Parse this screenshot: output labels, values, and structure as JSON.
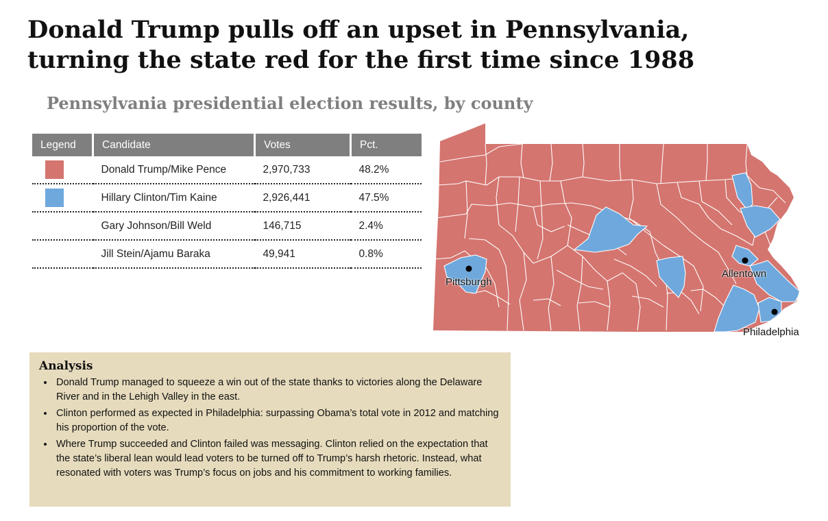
{
  "headline": {
    "line1": "Donald Trump pulls off an upset in Pennsylvania,",
    "line2": "turning the state red for the first time since 1988"
  },
  "subtitle": "Pennsylvania presidential election results, by county",
  "table": {
    "headers": [
      "Legend",
      "Candidate",
      "Votes",
      "Pct."
    ],
    "rows": [
      {
        "candidate": "Donald Trump/Mike Pence",
        "votes": "2,970,733",
        "pct": "48.2%",
        "color": "#d4756f"
      },
      {
        "candidate": "Hillary Clinton/Tim Kaine",
        "votes": "2,926,441",
        "pct": "47.5%",
        "color": "#6fa8dc"
      },
      {
        "candidate": "Gary Johnson/Bill Weld",
        "votes": "146,715",
        "pct": "2.4%",
        "color": ""
      },
      {
        "candidate": "Jill Stein/Ajamu Baraka",
        "votes": "49,941",
        "pct": "0.8%",
        "color": ""
      }
    ]
  },
  "map": {
    "colors": {
      "trump": "#d4756f",
      "clinton": "#6fa8dc",
      "border": "#ffffff"
    },
    "cities": [
      {
        "name": "Pittsburgh"
      },
      {
        "name": "Allentown"
      },
      {
        "name": "Philadelphia"
      }
    ]
  },
  "analysis": {
    "title": "Analysis",
    "bullets": [
      "Donald Trump managed to squeeze a win out of the state thanks to victories along the Delaware River and in the Lehigh Valley in the east.",
      "Clinton performed as expected in Philadelphia: surpassing Obama’s total vote in 2012 and matching his proportion of the vote.",
      "Where Trump succeeded and Clinton failed was messaging. Clinton relied on the expectation that the state’s liberal lean would lead voters to be turned off to Trump’s harsh rhetoric. Instead, what resonated with voters was Trump’s focus on jobs and his commitment to working families."
    ]
  }
}
